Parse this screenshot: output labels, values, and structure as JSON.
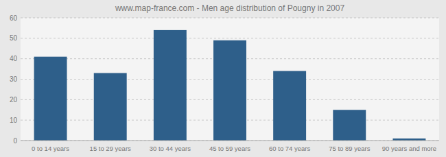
{
  "chart_data": {
    "type": "bar",
    "title": "www.map-france.com - Men age distribution of Pougny in 2007",
    "categories": [
      "0 to 14 years",
      "15 to 29 years",
      "30 to 44 years",
      "45 to 59 years",
      "60 to 74 years",
      "75 to 89 years",
      "90 years and more"
    ],
    "values": [
      41,
      33,
      54,
      49,
      34,
      15,
      1
    ],
    "color": "#2e5f8a",
    "ylim": [
      0,
      60
    ],
    "yticks": [
      0,
      10,
      20,
      30,
      40,
      50,
      60
    ],
    "grid": true
  }
}
